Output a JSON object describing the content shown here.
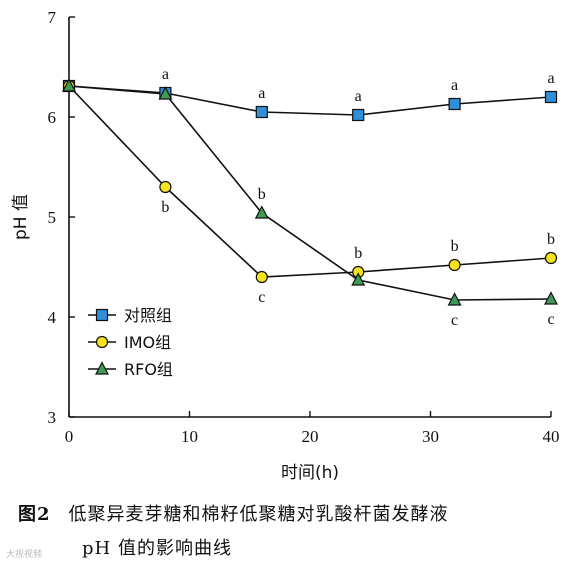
{
  "chart_data": {
    "type": "line",
    "xlabel": "时间(h)",
    "ylabel": "pH 值",
    "xlim": [
      0,
      40
    ],
    "ylim": [
      3,
      7
    ],
    "xticks": [
      0,
      10,
      20,
      30,
      40
    ],
    "yticks": [
      3,
      4,
      5,
      6,
      7
    ],
    "grid": false,
    "legend_position": "bottom-left",
    "series": [
      {
        "name": "对照组",
        "marker": "square",
        "color": "#2f8fd8",
        "x": [
          0,
          8,
          16,
          24,
          32,
          40
        ],
        "y": [
          6.31,
          6.24,
          6.05,
          6.02,
          6.13,
          6.2
        ],
        "labels": [
          "",
          "a",
          "a",
          "a",
          "a",
          "a"
        ],
        "label_side": [
          "",
          "above",
          "above",
          "above",
          "above",
          "above"
        ]
      },
      {
        "name": "IMO组",
        "marker": "circle",
        "color": "#f6e51c",
        "x": [
          0,
          8,
          16,
          24,
          32,
          40
        ],
        "y": [
          6.31,
          5.3,
          4.4,
          4.45,
          4.52,
          4.59
        ],
        "labels": [
          "",
          "b",
          "c",
          "b",
          "b",
          "b"
        ],
        "label_side": [
          "",
          "below",
          "below",
          "above",
          "above",
          "above"
        ]
      },
      {
        "name": "RFO组",
        "marker": "triangle",
        "color": "#3f9a55",
        "x": [
          0,
          8,
          16,
          24,
          32,
          40
        ],
        "y": [
          6.31,
          6.23,
          5.04,
          4.37,
          4.17,
          4.18
        ],
        "labels": [
          "",
          "",
          "b",
          "",
          "c",
          "c"
        ],
        "label_side": [
          "",
          "",
          "above",
          "",
          "below",
          "below"
        ]
      }
    ]
  },
  "caption": {
    "figure_number": "图2",
    "line1": "低聚异麦芽糖和棉籽低聚糖对乳酸杆菌发酵液",
    "line2": "pH 值的影响曲线"
  },
  "watermark": "大视视频"
}
